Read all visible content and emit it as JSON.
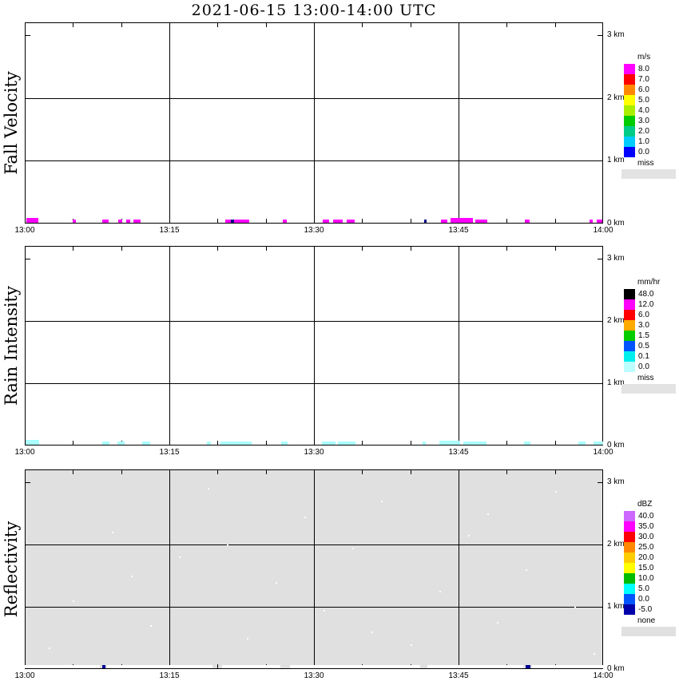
{
  "chart_data": {
    "type": "heatmap",
    "title": "2021-06-15  13:00-14:00 UTC",
    "x": {
      "tick_minutes": [
        0,
        15,
        30,
        45,
        60
      ],
      "tick_labels": [
        "13:00",
        "13:15",
        "13:30",
        "13:45",
        "14:00"
      ],
      "minor_step_min": 5,
      "max_min": 60
    },
    "y": {
      "tick_km": [
        0,
        1,
        2,
        3
      ],
      "tick_labels": [
        "0 km",
        "1 km",
        "2 km",
        "3 km"
      ],
      "gridline_km": [
        1,
        2
      ],
      "max_km": 3.2
    },
    "panels": [
      {
        "id": "fall-velocity",
        "ylabel": "Fall Velocity",
        "background": "#ffffff",
        "default_mark_color": "#ff00ff",
        "default_mark_height_km": 0.05,
        "legend": {
          "title": "m/s",
          "entries": [
            {
              "label": "8.0",
              "color": "#ff00ff"
            },
            {
              "label": "7.0",
              "color": "#ff0000"
            },
            {
              "label": "6.0",
              "color": "#ff8800"
            },
            {
              "label": "5.0",
              "color": "#ffff00"
            },
            {
              "label": "4.0",
              "color": "#aaee00"
            },
            {
              "label": "3.0",
              "color": "#00cc00"
            },
            {
              "label": "2.0",
              "color": "#00cc88"
            },
            {
              "label": "1.0",
              "color": "#00ccff"
            },
            {
              "label": "0.0",
              "color": "#0000ff"
            }
          ],
          "missing": {
            "label": "miss",
            "color": "#e3e3e3"
          }
        },
        "marks": [
          {
            "t0": 0.2,
            "t1": 1.4,
            "km1": 0.08
          },
          {
            "t0": 5.0,
            "t1": 5.3
          },
          {
            "t0": 8.0,
            "t1": 8.7
          },
          {
            "t0": 9.7,
            "t1": 10.1
          },
          {
            "t0": 10.5,
            "t1": 10.9
          },
          {
            "t0": 11.3,
            "t1": 12.0
          },
          {
            "t0": 20.8,
            "t1": 21.4
          },
          {
            "t0": 21.4,
            "t1": 21.7,
            "color": "#000088"
          },
          {
            "t0": 21.7,
            "t1": 23.3
          },
          {
            "t0": 26.8,
            "t1": 27.2
          },
          {
            "t0": 30.9,
            "t1": 31.6
          },
          {
            "t0": 32.0,
            "t1": 33.0
          },
          {
            "t0": 33.4,
            "t1": 34.2
          },
          {
            "t0": 41.4,
            "t1": 41.7,
            "color": "#000088"
          },
          {
            "t0": 43.2,
            "t1": 43.8
          },
          {
            "t0": 44.2,
            "t1": 46.5,
            "km1": 0.07
          },
          {
            "t0": 46.7,
            "t1": 48.0
          },
          {
            "t0": 51.9,
            "t1": 52.4
          },
          {
            "t0": 58.6,
            "t1": 58.9
          },
          {
            "t0": 59.3,
            "t1": 59.9
          }
        ]
      },
      {
        "id": "rain-intensity",
        "ylabel": "Rain Intensity",
        "background": "#ffffff",
        "default_mark_color": "#aaffff",
        "default_mark_height_km": 0.05,
        "legend": {
          "title": "mm/hr",
          "entries": [
            {
              "label": "48.0",
              "color": "#000000"
            },
            {
              "label": "12.0",
              "color": "#ff00ff"
            },
            {
              "label": "6.0",
              "color": "#ff0000"
            },
            {
              "label": "3.0",
              "color": "#ffaa00"
            },
            {
              "label": "1.5",
              "color": "#00cc00"
            },
            {
              "label": "0.5",
              "color": "#0055ff"
            },
            {
              "label": "0.1",
              "color": "#00eeee"
            },
            {
              "label": "0.0",
              "color": "#bbffff"
            }
          ],
          "missing": {
            "label": "miss",
            "color": "#e3e3e3"
          }
        },
        "marks": [
          {
            "t0": 0.1,
            "t1": 1.5,
            "km1": 0.08
          },
          {
            "t0": 8.0,
            "t1": 8.8
          },
          {
            "t0": 9.6,
            "t1": 10.4
          },
          {
            "t0": 12.2,
            "t1": 13.0
          },
          {
            "t0": 18.9,
            "t1": 19.3
          },
          {
            "t0": 20.3,
            "t1": 23.5
          },
          {
            "t0": 26.6,
            "t1": 27.3
          },
          {
            "t0": 30.8,
            "t1": 32.2
          },
          {
            "t0": 32.5,
            "t1": 34.3
          },
          {
            "t0": 41.3,
            "t1": 41.6
          },
          {
            "t0": 43.0,
            "t1": 45.2,
            "km1": 0.07
          },
          {
            "t0": 45.5,
            "t1": 47.9
          },
          {
            "t0": 51.8,
            "t1": 52.5
          },
          {
            "t0": 57.4,
            "t1": 58.2
          },
          {
            "t0": 59.0,
            "t1": 60.0
          }
        ]
      },
      {
        "id": "reflectivity",
        "ylabel": "Reflectivity",
        "background": "#e0e0e0",
        "default_mark_color": "#ffffff",
        "default_mark_height_km": 0.05,
        "dot_color": "#ffffff",
        "legend": {
          "title": "dBZ",
          "entries": [
            {
              "label": "40.0",
              "color": "#cc66ff"
            },
            {
              "label": "35.0",
              "color": "#ff00ff"
            },
            {
              "label": "30.0",
              "color": "#ff0000"
            },
            {
              "label": "25.0",
              "color": "#ff8800"
            },
            {
              "label": "20.0",
              "color": "#ffcc00"
            },
            {
              "label": "15.0",
              "color": "#ffff00"
            },
            {
              "label": "10.0",
              "color": "#00bb00"
            },
            {
              "label": "5.0",
              "color": "#00ffff"
            },
            {
              "label": "0.0",
              "color": "#0055ff"
            },
            {
              "label": "-5.0",
              "color": "#0000aa"
            }
          ],
          "missing": {
            "label": "none",
            "color": "#e0e0e0"
          }
        },
        "marks": [
          {
            "t0": 0.0,
            "t1": 7.8,
            "km1": 0.045
          },
          {
            "t0": 8.5,
            "t1": 19.5,
            "km1": 0.045
          },
          {
            "t0": 20.5,
            "t1": 26.5,
            "km1": 0.045
          },
          {
            "t0": 27.5,
            "t1": 41.0,
            "km1": 0.045
          },
          {
            "t0": 41.8,
            "t1": 51.7,
            "km1": 0.045
          },
          {
            "t0": 52.6,
            "t1": 60.0,
            "km1": 0.045
          },
          {
            "t0": 8.0,
            "t1": 8.4,
            "color": "#000099"
          },
          {
            "t0": 52.0,
            "t1": 52.5,
            "color": "#000099"
          }
        ],
        "dots": [
          {
            "t": 2.5,
            "km": 0.35
          },
          {
            "t": 5,
            "km": 1.1
          },
          {
            "t": 9,
            "km": 2.2
          },
          {
            "t": 13,
            "km": 0.7
          },
          {
            "t": 16,
            "km": 1.8
          },
          {
            "t": 19,
            "km": 2.9
          },
          {
            "t": 23,
            "km": 0.5
          },
          {
            "t": 26,
            "km": 1.4
          },
          {
            "t": 29,
            "km": 2.45
          },
          {
            "t": 31,
            "km": 0.95
          },
          {
            "t": 34,
            "km": 1.95
          },
          {
            "t": 37,
            "km": 2.7
          },
          {
            "t": 40,
            "km": 0.4
          },
          {
            "t": 43,
            "km": 1.25
          },
          {
            "t": 46,
            "km": 2.15
          },
          {
            "t": 49,
            "km": 0.75
          },
          {
            "t": 52,
            "km": 1.6
          },
          {
            "t": 55,
            "km": 2.85
          },
          {
            "t": 57,
            "km": 1.0
          },
          {
            "t": 59,
            "km": 0.25
          },
          {
            "t": 11,
            "km": 1.5
          },
          {
            "t": 21,
            "km": 2.0
          },
          {
            "t": 36,
            "km": 0.6
          },
          {
            "t": 48,
            "km": 2.5
          }
        ]
      }
    ]
  }
}
